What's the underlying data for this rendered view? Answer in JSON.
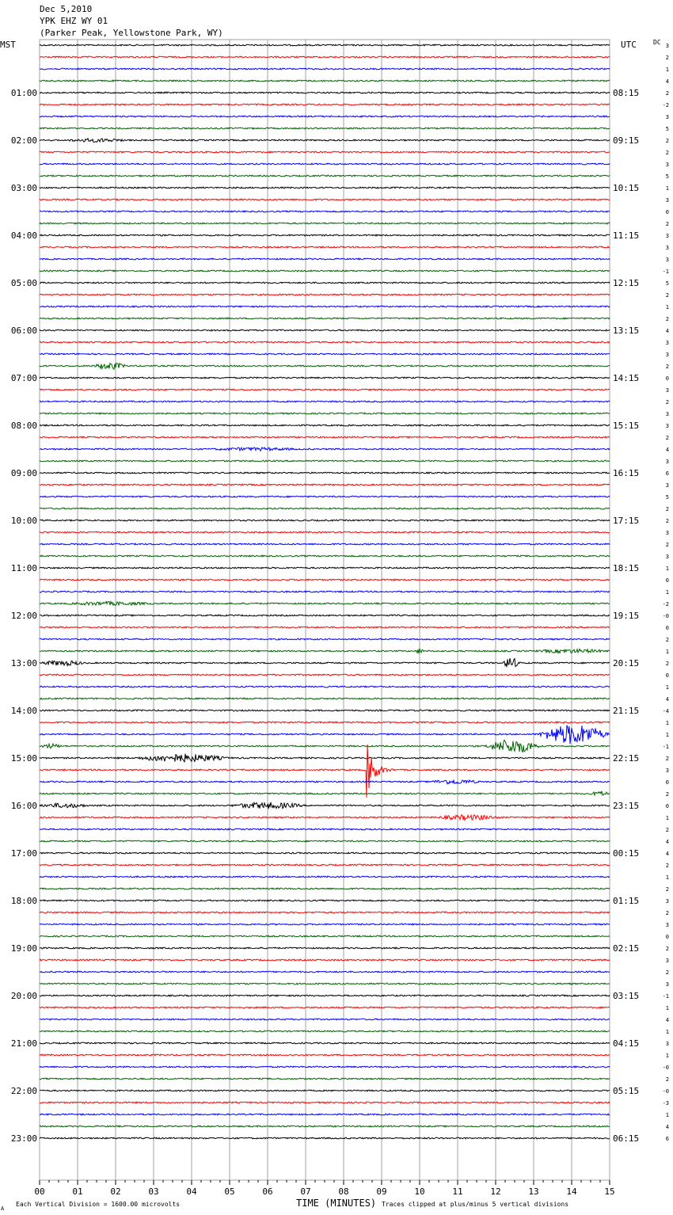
{
  "header": {
    "date": "Dec 5,2010",
    "station": "YPK EHZ WY 01",
    "location": "(Parker Peak, Yellowstone Park, WY)"
  },
  "labels": {
    "left_tz": "MST",
    "right_tz": "UTC",
    "dc": "DC",
    "xlabel": "TIME (MINUTES)",
    "footer_left": "Each Vertical Division = 1600.00 microvolts",
    "footer_right": "Traces clipped at plus/minus 5 vertical divisions",
    "corner_mark": "A"
  },
  "chart_data": {
    "type": "line",
    "title": "Dec 5,2010 YPK EHZ WY 01 (Parker Peak, Yellowstone Park, WY)",
    "xlabel": "TIME (MINUTES)",
    "xlim": [
      0,
      15
    ],
    "x_tick_labels": [
      "00",
      "01",
      "02",
      "03",
      "04",
      "05",
      "06",
      "07",
      "08",
      "09",
      "10",
      "11",
      "12",
      "13",
      "14",
      "15"
    ],
    "trace_colors": [
      "#000000",
      "#ff0000",
      "#0000ff",
      "#006400"
    ],
    "grid_color": "#a0a0a0",
    "left_hour_labels": [
      "01:00",
      "02:00",
      "03:00",
      "04:00",
      "05:00",
      "06:00",
      "07:00",
      "08:00",
      "09:00",
      "10:00",
      "11:00",
      "12:00",
      "13:00",
      "14:00",
      "15:00",
      "16:00",
      "17:00",
      "18:00",
      "19:00",
      "20:00",
      "21:00",
      "22:00",
      "23:00"
    ],
    "right_hour_labels": [
      "08:15",
      "09:15",
      "10:15",
      "11:15",
      "12:15",
      "13:15",
      "14:15",
      "15:15",
      "16:15",
      "17:15",
      "18:15",
      "19:15",
      "20:15",
      "21:15",
      "22:15",
      "23:15",
      "00:15",
      "01:15",
      "02:15",
      "03:15",
      "04:15",
      "05:15",
      "06:15"
    ],
    "dc_offsets": [
      "3",
      "2",
      "1",
      "4",
      "2",
      "-2",
      "3",
      "5",
      "2",
      "2",
      "3",
      "5",
      "1",
      "3",
      "0",
      "2",
      "3",
      "3",
      "3",
      "-1",
      "5",
      "2",
      "1",
      "2",
      "4",
      "3",
      "3",
      "2",
      "0",
      "3",
      "2",
      "3",
      "3",
      "2",
      "4",
      "3",
      "6",
      "3",
      "5",
      "2",
      "2",
      "3",
      "2",
      "3",
      "1",
      "0",
      "1",
      "-2",
      "-0",
      "0",
      "2",
      "1",
      "2",
      "0",
      "1",
      "4",
      "-4",
      "1",
      "1",
      "-1",
      "2",
      "3",
      "0",
      "2",
      "0",
      "1",
      "2",
      "4",
      "4",
      "2",
      "1",
      "2",
      "3",
      "2",
      "3",
      "0",
      "2",
      "3",
      "2",
      "3",
      "-1",
      "1",
      "4",
      "1",
      "3",
      "1",
      "-0",
      "2",
      "-0",
      "-3",
      "1",
      "4",
      "6"
    ],
    "events": [
      {
        "row": 8,
        "start": 0.7,
        "end": 2.3,
        "amp": 0.22
      },
      {
        "row": 27,
        "start": 1.4,
        "end": 2.3,
        "amp": 0.5
      },
      {
        "row": 34,
        "start": 4.5,
        "end": 6.8,
        "amp": 0.18
      },
      {
        "row": 47,
        "start": 0.7,
        "end": 3.0,
        "amp": 0.22
      },
      {
        "row": 51,
        "start": 9.9,
        "end": 10.1,
        "amp": 0.4
      },
      {
        "row": 51,
        "start": 13.0,
        "end": 15.0,
        "amp": 0.25
      },
      {
        "row": 52,
        "start": 0.0,
        "end": 1.2,
        "amp": 0.35
      },
      {
        "row": 52,
        "start": 12.2,
        "end": 12.6,
        "amp": 1.0
      },
      {
        "row": 58,
        "start": 13.1,
        "end": 15.0,
        "amp": 1.6
      },
      {
        "row": 59,
        "start": 0.0,
        "end": 0.6,
        "amp": 0.3
      },
      {
        "row": 59,
        "start": 11.7,
        "end": 13.2,
        "amp": 1.1
      },
      {
        "row": 60,
        "start": 2.5,
        "end": 5.0,
        "amp": 0.6
      },
      {
        "row": 61,
        "start": 8.6,
        "end": 9.3,
        "amp": 5.0
      },
      {
        "row": 62,
        "start": 10.2,
        "end": 11.6,
        "amp": 0.3
      },
      {
        "row": 63,
        "start": 14.5,
        "end": 15.0,
        "amp": 0.35
      },
      {
        "row": 64,
        "start": 0.0,
        "end": 1.3,
        "amp": 0.3
      },
      {
        "row": 64,
        "start": 5.0,
        "end": 7.0,
        "amp": 0.45
      },
      {
        "row": 65,
        "start": 10.4,
        "end": 12.2,
        "amp": 0.35
      }
    ]
  }
}
